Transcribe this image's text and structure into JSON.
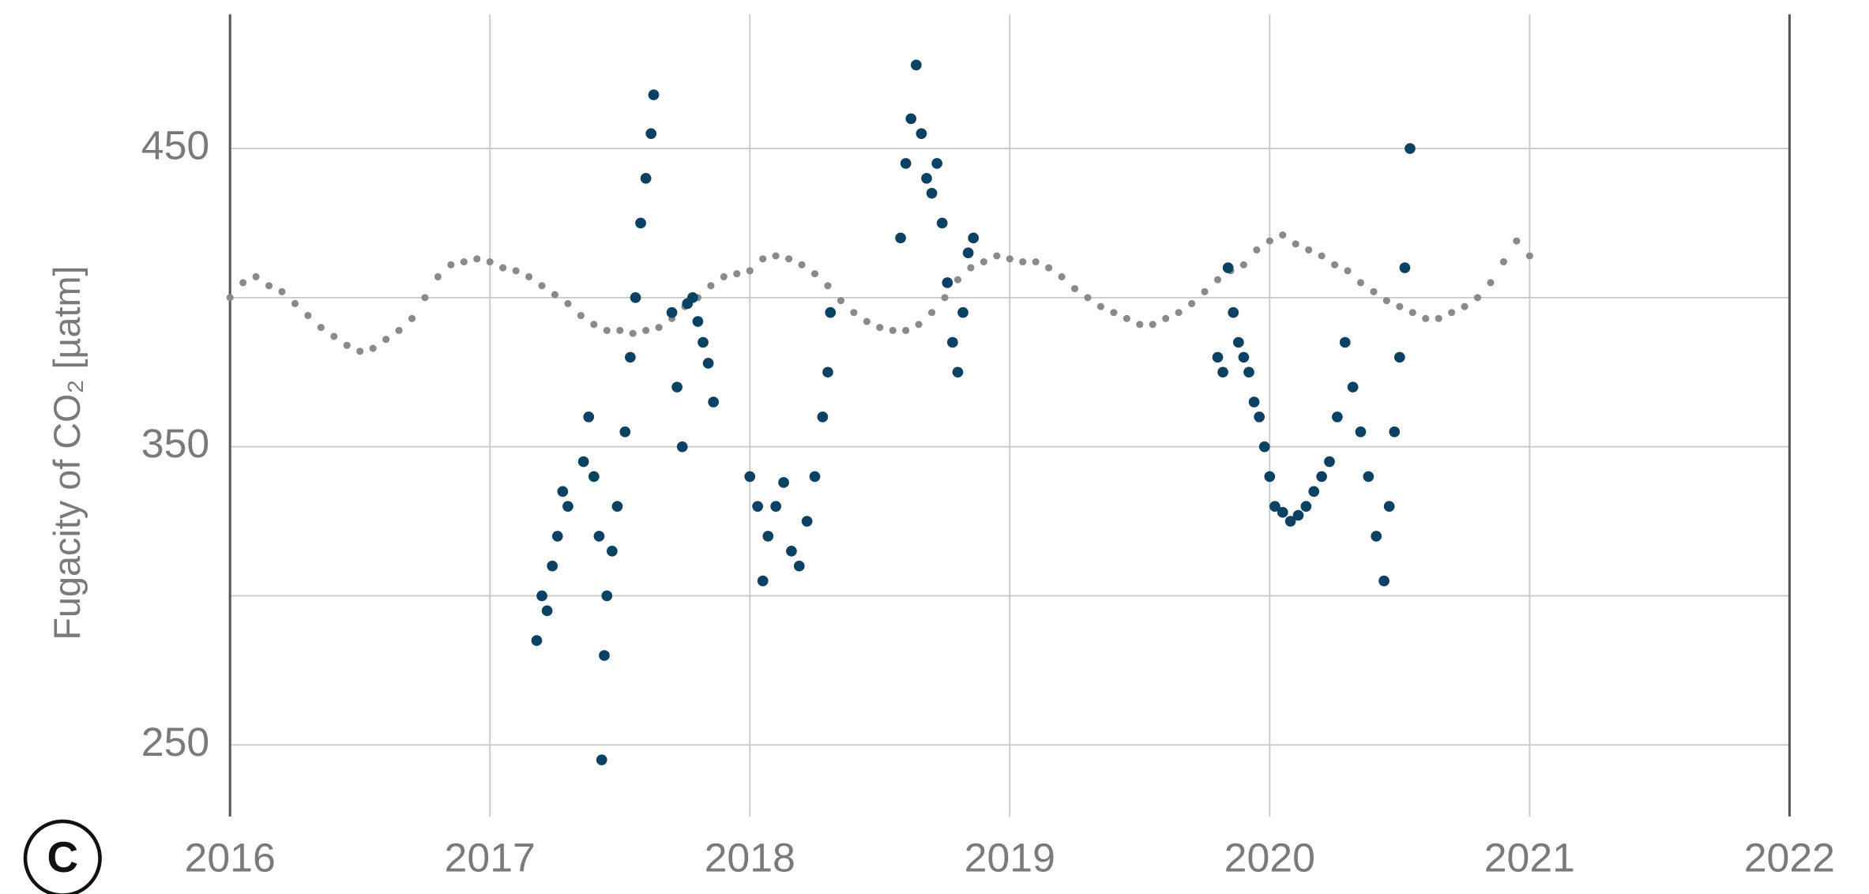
{
  "chart_data": {
    "type": "scatter",
    "panel_label": "C",
    "ylabel": "Fugacity of CO₂ [µatm]",
    "xlim": [
      2016,
      2022
    ],
    "xticks": [
      2016,
      2017,
      2018,
      2019,
      2020,
      2021,
      2022
    ],
    "ylim": [
      226,
      495
    ],
    "yticks": [
      250,
      350,
      450
    ],
    "ygridlines": [
      250,
      300,
      350,
      400,
      450
    ],
    "grid": true,
    "series": [
      {
        "color": "#8a8a8a",
        "x": [
          2016.0,
          2016.05,
          2016.1,
          2016.15,
          2016.2,
          2016.25,
          2016.3,
          2016.35,
          2016.4,
          2016.45,
          2016.5,
          2016.55,
          2016.6,
          2016.65,
          2016.7,
          2016.75,
          2016.8,
          2016.85,
          2016.9,
          2016.95,
          2017.0,
          2017.05,
          2017.1,
          2017.15,
          2017.2,
          2017.25,
          2017.3,
          2017.35,
          2017.4,
          2017.45,
          2017.5,
          2017.55,
          2017.6,
          2017.65,
          2017.7,
          2017.75,
          2017.8,
          2017.85,
          2017.9,
          2017.95,
          2018.0,
          2018.05,
          2018.1,
          2018.15,
          2018.2,
          2018.25,
          2018.3,
          2018.35,
          2018.4,
          2018.45,
          2018.5,
          2018.55,
          2018.6,
          2018.65,
          2018.7,
          2018.75,
          2018.8,
          2018.85,
          2018.9,
          2018.95,
          2019.0,
          2019.05,
          2019.1,
          2019.15,
          2019.2,
          2019.25,
          2019.3,
          2019.35,
          2019.4,
          2019.45,
          2019.5,
          2019.55,
          2019.6,
          2019.65,
          2019.7,
          2019.75,
          2019.8,
          2019.85,
          2019.9,
          2019.95,
          2020.0,
          2020.05,
          2020.1,
          2020.15,
          2020.2,
          2020.25,
          2020.3,
          2020.35,
          2020.4,
          2020.45,
          2020.5,
          2020.55,
          2020.6,
          2020.65,
          2020.7,
          2020.75,
          2020.8,
          2020.85,
          2020.9,
          2020.95,
          2021.0
        ],
        "values": [
          400,
          405,
          407,
          404,
          402,
          398,
          394,
          390,
          387,
          384,
          382,
          383,
          386,
          389,
          393,
          400,
          407,
          411,
          412,
          413,
          412,
          410,
          409,
          407,
          404,
          401,
          398,
          394,
          391,
          389,
          389,
          388,
          389,
          390,
          393,
          397,
          400,
          404,
          407,
          408,
          409,
          413,
          414,
          413,
          411,
          408,
          404,
          399,
          395,
          392,
          390,
          389,
          389,
          391,
          395,
          400,
          406,
          410,
          412,
          414,
          413,
          412,
          412,
          410,
          407,
          403,
          400,
          397,
          395,
          393,
          391,
          391,
          393,
          395,
          398,
          402,
          406,
          409,
          411,
          416,
          419,
          421,
          418,
          416,
          414,
          411,
          409,
          405,
          402,
          399,
          397,
          395,
          393,
          393,
          395,
          397,
          400,
          405,
          412,
          419,
          414
        ]
      },
      {
        "color": "#0b4263",
        "x": [
          2017.18,
          2017.2,
          2017.22,
          2017.24,
          2017.26,
          2017.28,
          2017.3,
          2017.36,
          2017.38,
          2017.4,
          2017.42,
          2017.43,
          2017.44,
          2017.45,
          2017.47,
          2017.49,
          2017.52,
          2017.54,
          2017.56,
          2017.58,
          2017.6,
          2017.62,
          2017.63,
          2017.7,
          2017.72,
          2017.74,
          2017.76,
          2017.78,
          2017.8,
          2017.82,
          2017.84,
          2017.86,
          2018.0,
          2018.03,
          2018.05,
          2018.07,
          2018.1,
          2018.13,
          2018.16,
          2018.19,
          2018.22,
          2018.25,
          2018.28,
          2018.3,
          2018.31,
          2018.58,
          2018.6,
          2018.62,
          2018.64,
          2018.66,
          2018.68,
          2018.7,
          2018.72,
          2018.74,
          2018.76,
          2018.78,
          2018.8,
          2018.82,
          2018.84,
          2018.86,
          2019.8,
          2019.82,
          2019.84,
          2019.86,
          2019.88,
          2019.9,
          2019.92,
          2019.94,
          2019.96,
          2019.98,
          2020.0,
          2020.02,
          2020.05,
          2020.08,
          2020.11,
          2020.14,
          2020.17,
          2020.2,
          2020.23,
          2020.26,
          2020.29,
          2020.32,
          2020.35,
          2020.38,
          2020.41,
          2020.44,
          2020.46,
          2020.48,
          2020.5,
          2020.52,
          2020.54
        ],
        "values": [
          285,
          300,
          295,
          310,
          320,
          335,
          330,
          345,
          360,
          340,
          320,
          245,
          280,
          300,
          315,
          330,
          355,
          380,
          400,
          425,
          440,
          455,
          468,
          395,
          370,
          350,
          398,
          400,
          392,
          385,
          378,
          365,
          340,
          330,
          305,
          320,
          330,
          338,
          315,
          310,
          325,
          340,
          360,
          375,
          395,
          420,
          445,
          460,
          478,
          455,
          440,
          435,
          445,
          425,
          405,
          385,
          375,
          395,
          415,
          420,
          380,
          375,
          410,
          395,
          385,
          380,
          375,
          365,
          360,
          350,
          340,
          330,
          328,
          325,
          327,
          330,
          335,
          340,
          345,
          360,
          385,
          370,
          355,
          340,
          320,
          305,
          330,
          355,
          380,
          410,
          450
        ]
      }
    ]
  }
}
